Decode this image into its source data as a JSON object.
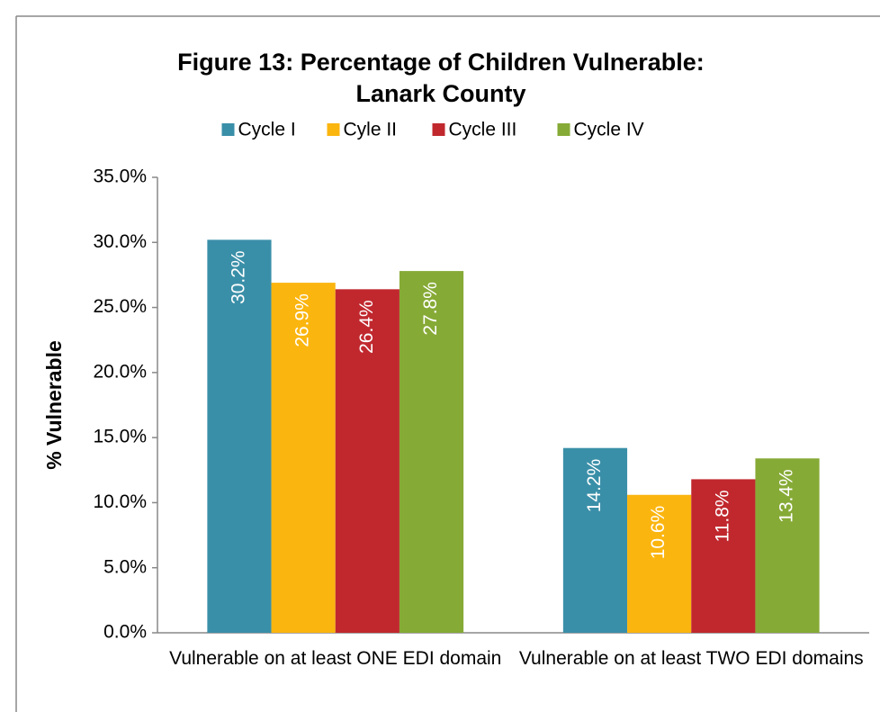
{
  "chart_data": {
    "type": "bar",
    "title": [
      "Figure 13: Percentage of Children Vulnerable:",
      "Lanark County"
    ],
    "y_label": "% Vulnerable",
    "categories": [
      "Vulnerable on at least ONE EDI domain",
      "Vulnerable on at least TWO EDI domains"
    ],
    "series": [
      {
        "name": "Cycle I",
        "color": "#3a8fa8",
        "values": [
          30.2,
          14.2
        ],
        "value_labels": [
          "30.2%",
          "14.2%"
        ]
      },
      {
        "name": "Cyle II",
        "color": "#fbb50f",
        "values": [
          26.9,
          10.6
        ],
        "value_labels": [
          "26.9%",
          "10.6%"
        ]
      },
      {
        "name": "Cycle III",
        "color": "#c0282e",
        "values": [
          26.4,
          11.8
        ],
        "value_labels": [
          "26.4%",
          "11.8%"
        ]
      },
      {
        "name": "Cycle IV",
        "color": "#86aa36",
        "values": [
          27.8,
          13.4
        ],
        "value_labels": [
          "27.8%",
          "13.4%"
        ]
      }
    ],
    "ylim": [
      0,
      35
    ],
    "yticks": [
      {
        "value": 0,
        "label": "0.0%"
      },
      {
        "value": 5,
        "label": "5.0%"
      },
      {
        "value": 10,
        "label": "10.0%"
      },
      {
        "value": 15,
        "label": "15.0%"
      },
      {
        "value": 20,
        "label": "20.0%"
      },
      {
        "value": 25,
        "label": "25.0%"
      },
      {
        "value": 30,
        "label": "30.0%"
      },
      {
        "value": 35,
        "label": "35.0%"
      }
    ],
    "legend": "top",
    "grid": false
  }
}
